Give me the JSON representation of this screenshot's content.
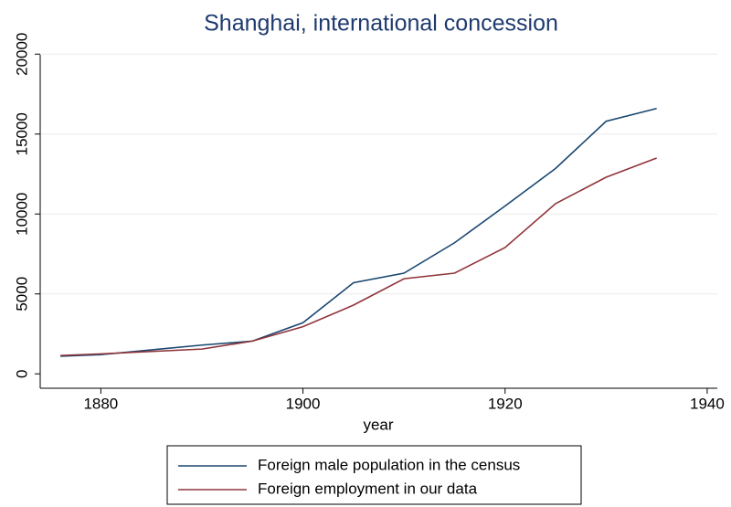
{
  "chart_data": {
    "type": "line",
    "title": "Shanghai, international concession",
    "x_label": "year",
    "x": [
      1876,
      1880,
      1890,
      1895,
      1900,
      1905,
      1910,
      1915,
      1920,
      1925,
      1930,
      1935
    ],
    "series": [
      {
        "name": "Foreign male population in the census",
        "color": "#1a476f",
        "values": [
          1100,
          1200,
          1800,
          2050,
          3200,
          5700,
          6300,
          8200,
          10500,
          12850,
          15800,
          16600
        ]
      },
      {
        "name": "Foreign employment in our data",
        "color": "#90353b",
        "values": [
          1150,
          1250,
          1550,
          2050,
          2950,
          4300,
          5950,
          6300,
          7900,
          10650,
          12300,
          13500
        ]
      }
    ],
    "xlim": [
      1874,
      1941
    ],
    "xticks": [
      1880,
      1900,
      1920,
      1940
    ],
    "ylim": [
      -900,
      21100
    ],
    "yticks": [
      0,
      5000,
      10000,
      15000,
      20000
    ],
    "grid": true,
    "legend": "bottom"
  }
}
